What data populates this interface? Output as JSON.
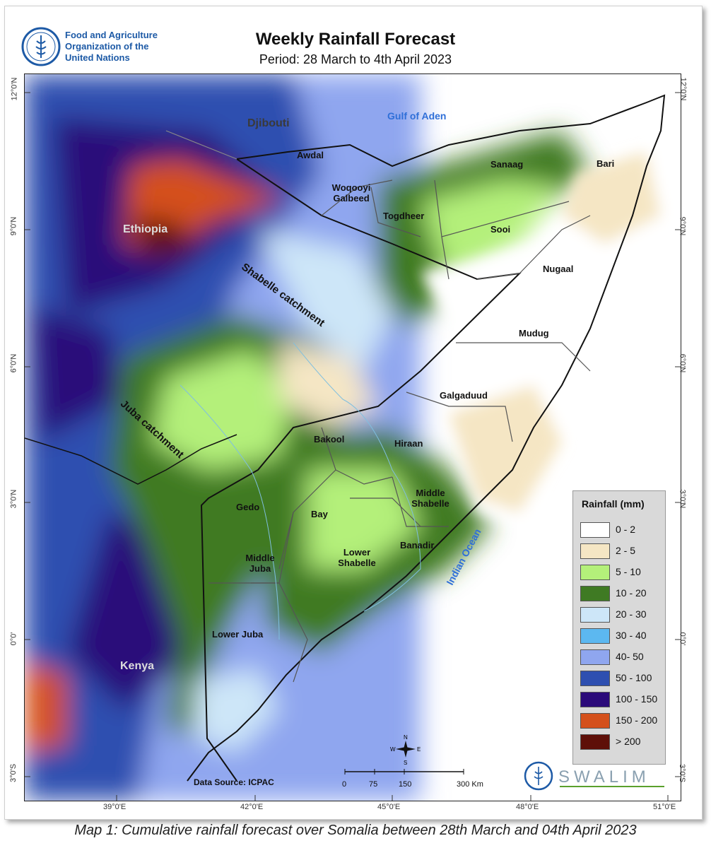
{
  "header": {
    "org_line1": "Food and Agriculture",
    "org_line2": "Organization of the",
    "org_line3": "United Nations",
    "title": "Weekly Rainfall Forecast",
    "subtitle": "Period: 28 March to 4th April 2023"
  },
  "logo": {
    "fao_text": "FAO",
    "fao_motto": "FIAT PANIS",
    "swalim_text": "SWALIM",
    "brand_color": "#1d5aa6"
  },
  "graticule": {
    "lat_labels": [
      "12°0'N",
      "9°0'N",
      "6°0'N",
      "3°0'N",
      "0°0'",
      "3°0'S"
    ],
    "lon_labels": [
      "39°0'E",
      "42°0'E",
      "45°0'E",
      "48°0'E",
      "51°0'E"
    ]
  },
  "countries": [
    "Djibouti",
    "Ethiopia",
    "Kenya"
  ],
  "seas": [
    "Gulf of Aden",
    "Indian Ocean"
  ],
  "catchments": [
    "Shabelle catchment",
    "Juba catchment"
  ],
  "regions": [
    "Awdal",
    "Woqooyi Galbeed",
    "Togdheer",
    "Sanaag",
    "Bari",
    "Sooi",
    "Nugaal",
    "Mudug",
    "Galgaduud",
    "Bakool",
    "Hiraan",
    "Middle Shabelle",
    "Gedo",
    "Bay",
    "Banadir",
    "Middle Juba",
    "Lower Shabelle",
    "Lower Juba"
  ],
  "legend": {
    "title": "Rainfall (mm)",
    "items": [
      {
        "label": "0 - 2",
        "color": "#ffffff"
      },
      {
        "label": "2 - 5",
        "color": "#f5e6c4"
      },
      {
        "label": "5 - 10",
        "color": "#b4f07a"
      },
      {
        "label": "10 - 20",
        "color": "#3f7a23"
      },
      {
        "label": "20 - 30",
        "color": "#cde6f8"
      },
      {
        "label": "30 - 40",
        "color": "#5cb8f0"
      },
      {
        "label": "40- 50",
        "color": "#8fa6ef"
      },
      {
        "label": "50 - 100",
        "color": "#2e4fb0"
      },
      {
        "label": "100 - 150",
        "color": "#2b0a7a"
      },
      {
        "label": "150 - 200",
        "color": "#d4501c"
      },
      {
        "label": ">   200",
        "color": "#5e0f08"
      }
    ]
  },
  "data_source": "Data Source: ICPAC",
  "scale_bar": {
    "labels": [
      "0",
      "75",
      "150",
      "300 Km"
    ]
  },
  "north_arrow": {
    "n": "N",
    "s": "S",
    "e": "E",
    "w": "W"
  },
  "caption": "Map 1: Cumulative rainfall forecast over Somalia between 28th March and 04th April 2023"
}
